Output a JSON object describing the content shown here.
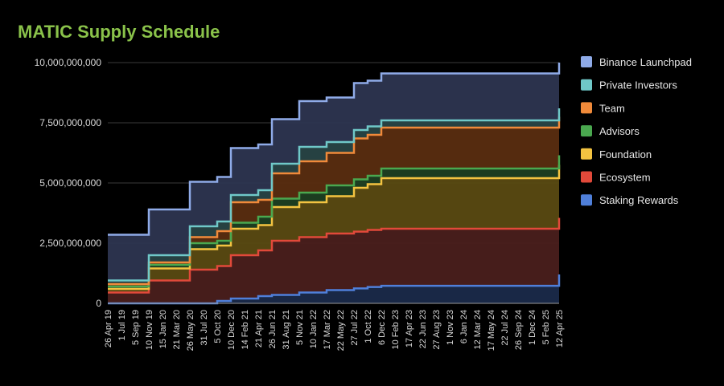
{
  "chart_data": {
    "type": "area",
    "stacked": true,
    "step": true,
    "title": "MATIC Supply Schedule",
    "xlabel": "",
    "ylabel": "",
    "ylim": [
      0,
      10000000000
    ],
    "y_ticks": [
      "0",
      "2,500,000,000",
      "5,000,000,000",
      "7,500,000,000",
      "10,000,000,000"
    ],
    "x_ticks": [
      "26 Apr 19",
      "1 Jul 19",
      "5 Sep 19",
      "10 Nov 19",
      "15 Jan 20",
      "21 Mar 20",
      "26 May 20",
      "31 Jul 20",
      "5 Oct 20",
      "10 Dec 20",
      "14 Feb 21",
      "21 Apr 21",
      "26 Jun 21",
      "31 Aug 21",
      "5 Nov 21",
      "10 Jan 22",
      "17 Mar 22",
      "22 May 22",
      "27 Jul 22",
      "1 Oct 22",
      "6 Dec 22",
      "10 Feb 23",
      "17 Apr 23",
      "22 Jun 23",
      "27 Aug 23",
      "1 Nov 23",
      "6 Jan 24",
      "12 Mar 24",
      "17 May 24",
      "22 Jul 24",
      "26 Sep 24",
      "1 Dec 24",
      "5 Feb 25",
      "12 Apr 25"
    ],
    "grid": true,
    "legend_position": "right",
    "series_order_bottom_to_top": [
      "Staking Rewards",
      "Ecosystem",
      "Foundation",
      "Advisors",
      "Team",
      "Private Investors",
      "Binance Launchpad"
    ],
    "x": [
      "26 Apr 19",
      "10 Nov 19",
      "26 May 20",
      "5 Oct 20",
      "10 Dec 20",
      "21 Apr 21",
      "26 Jun 21",
      "5 Nov 21",
      "17 Mar 22",
      "27 Jul 22",
      "1 Oct 22",
      "6 Dec 22",
      "12 Apr 25"
    ],
    "cumulative_totals": {
      "Staking Rewards": [
        0,
        0,
        0,
        100000000,
        200000000,
        300000000,
        350000000,
        450000000,
        550000000,
        620000000,
        680000000,
        730000000,
        1200000000
      ],
      "Ecosystem": [
        450000000,
        950000000,
        1400000000,
        1550000000,
        2000000000,
        2200000000,
        2600000000,
        2750000000,
        2900000000,
        2980000000,
        3050000000,
        3100000000,
        3550000000
      ],
      "Foundation": [
        600000000,
        1450000000,
        2250000000,
        2400000000,
        3100000000,
        3250000000,
        4000000000,
        4200000000,
        4450000000,
        4800000000,
        4950000000,
        5200000000,
        5750000000
      ],
      "Advisors": [
        700000000,
        1600000000,
        2500000000,
        2600000000,
        3350000000,
        3600000000,
        4350000000,
        4600000000,
        4900000000,
        5150000000,
        5300000000,
        5600000000,
        6150000000
      ],
      "Team": [
        800000000,
        1700000000,
        2750000000,
        3000000000,
        4200000000,
        4300000000,
        5400000000,
        5900000000,
        6250000000,
        6850000000,
        7000000000,
        7300000000,
        7750000000
      ],
      "Private Investors": [
        950000000,
        2000000000,
        3200000000,
        3400000000,
        4500000000,
        4700000000,
        5800000000,
        6500000000,
        6700000000,
        7200000000,
        7350000000,
        7600000000,
        8100000000
      ],
      "Binance Launchpad": [
        2850000000,
        3900000000,
        5050000000,
        5250000000,
        6450000000,
        6600000000,
        7650000000,
        8400000000,
        8550000000,
        9150000000,
        9250000000,
        9550000000,
        10000000000
      ]
    },
    "legend": [
      {
        "name": "Binance Launchpad",
        "color": "#8fabe8"
      },
      {
        "name": "Private Investors",
        "color": "#6fc8c8"
      },
      {
        "name": "Team",
        "color": "#f08a3a"
      },
      {
        "name": "Advisors",
        "color": "#4aa84f"
      },
      {
        "name": "Foundation",
        "color": "#f3c341"
      },
      {
        "name": "Ecosystem",
        "color": "#e1493a"
      },
      {
        "name": "Staking Rewards",
        "color": "#4f7fd9"
      }
    ],
    "fills": {
      "Binance Launchpad": "#2d3550",
      "Private Investors": "#284546",
      "Team": "#5a2d10",
      "Advisors": "#1d3f22",
      "Foundation": "#5a4a12",
      "Ecosystem": "#4a1f1c",
      "Staking Rewards": "#1a2a4a"
    },
    "title_color": "#8ac24a"
  }
}
